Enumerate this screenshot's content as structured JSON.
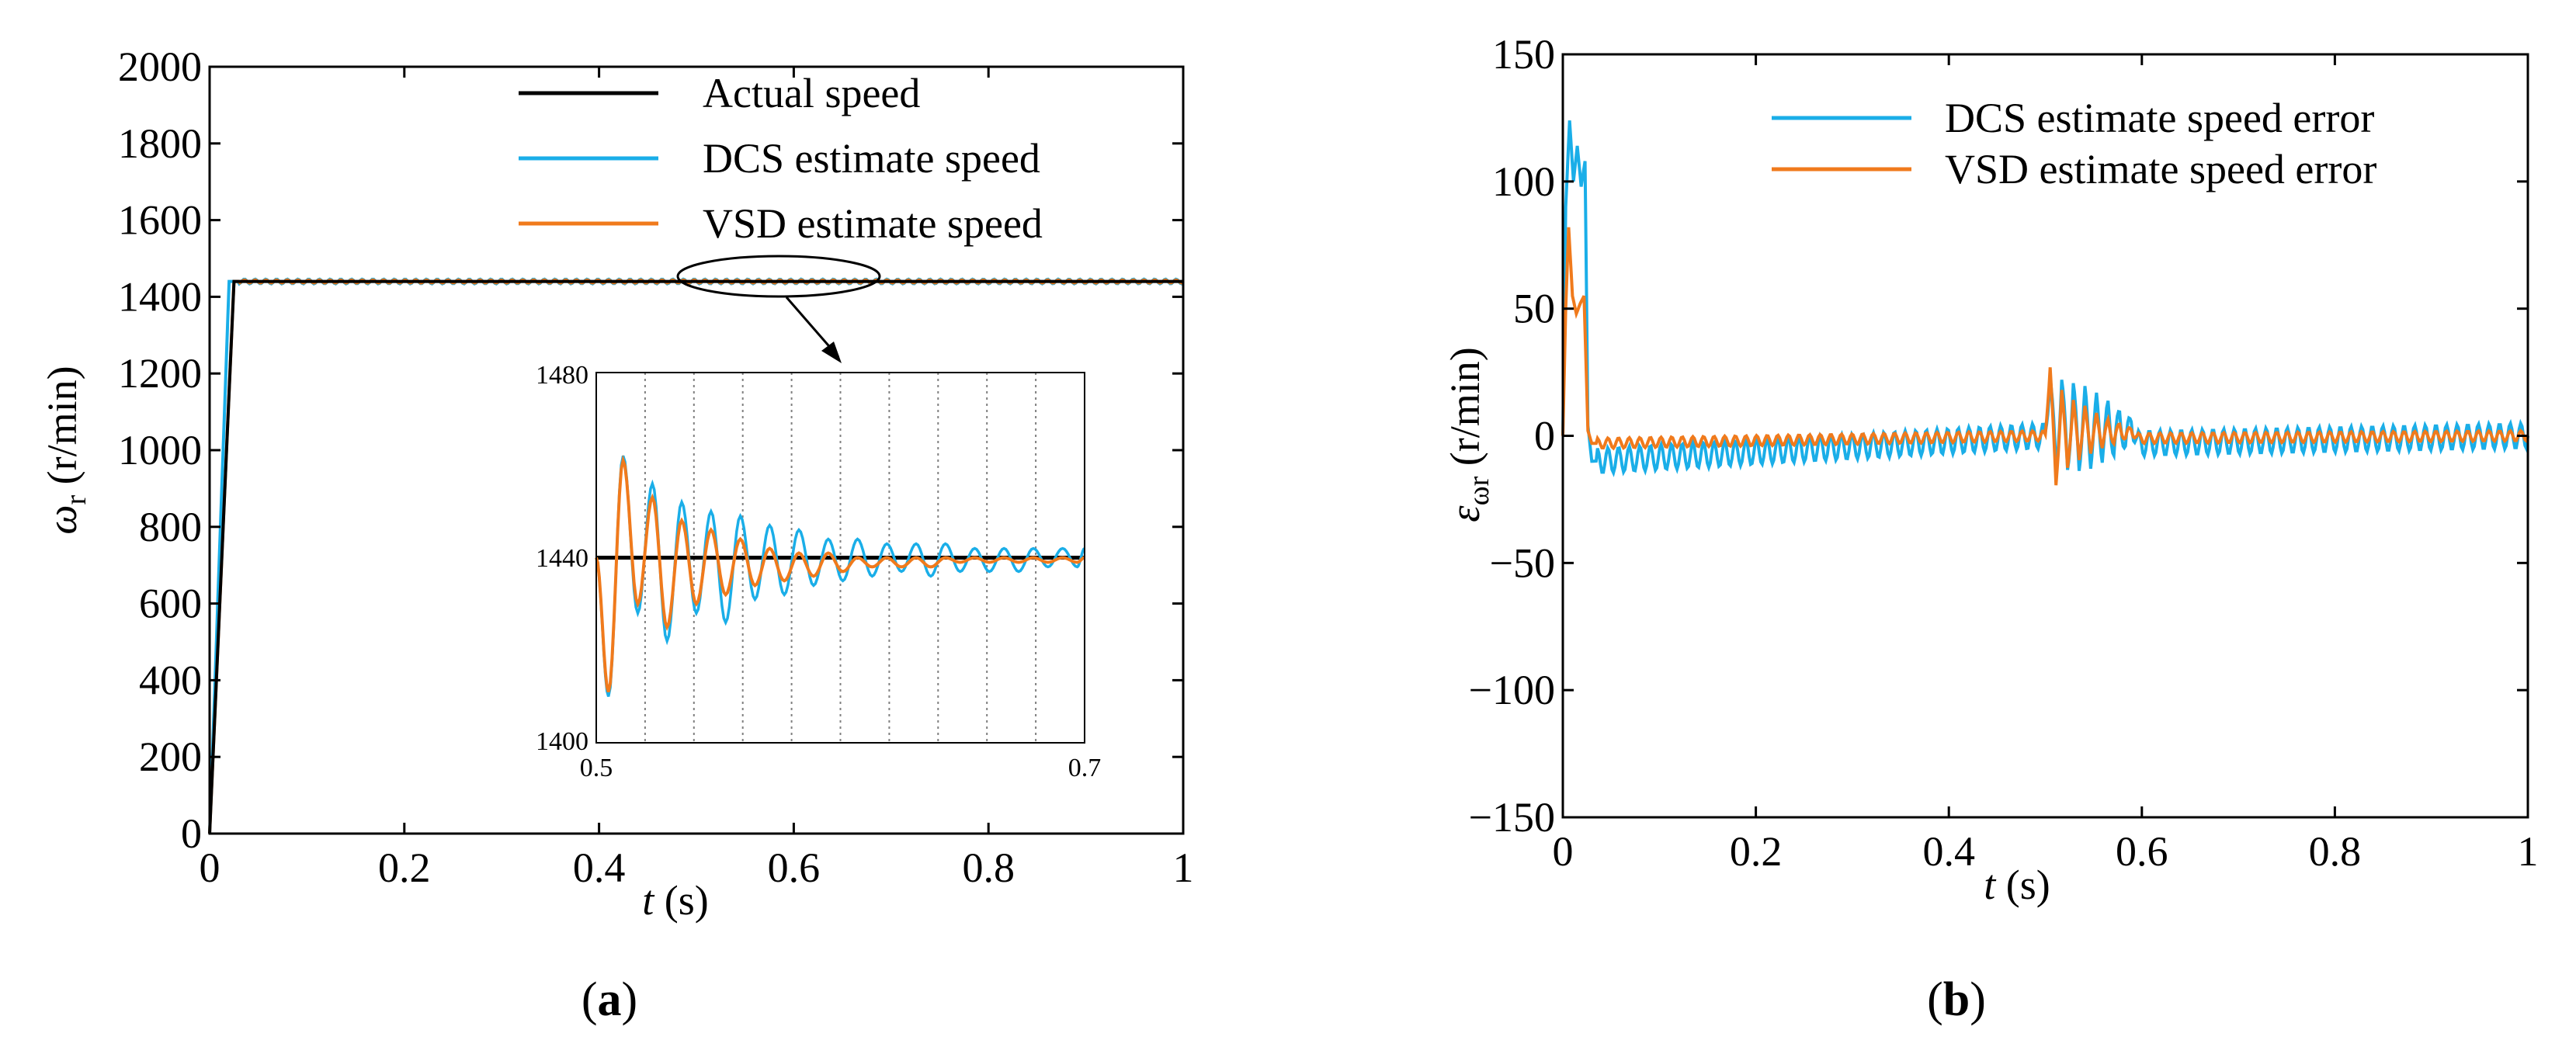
{
  "colors": {
    "actual": "#000000",
    "dcs": "#1aaee8",
    "vsd": "#f07a1c",
    "axis": "#000000",
    "grid": "#808080"
  },
  "chart_data": [
    {
      "id": "a",
      "type": "line",
      "caption": "(a)",
      "caption_letter": "a",
      "xlabel_var": "t",
      "xlabel_unit": " (s)",
      "ylabel_var": "ω",
      "ylabel_sub": "r",
      "ylabel_unit": " (r/min)",
      "xlim": [
        0,
        1
      ],
      "ylim": [
        0,
        2000
      ],
      "xticks": [
        0,
        0.2,
        0.4,
        0.6,
        0.8,
        1
      ],
      "xtick_labels": [
        "0",
        "0.2",
        "0.4",
        "0.6",
        "0.8",
        "1"
      ],
      "yticks": [
        0,
        200,
        400,
        600,
        800,
        1000,
        1200,
        1400,
        1600,
        1800,
        2000
      ],
      "ytick_labels": [
        "0",
        "200",
        "400",
        "600",
        "800",
        "1000",
        "1200",
        "1400",
        "1600",
        "1800",
        "2000"
      ],
      "legend": [
        "Actual speed",
        "DCS estimate speed",
        "VSD estimate speed"
      ],
      "series": [
        {
          "name": "Actual speed",
          "x": [
            0,
            0.025,
            1
          ],
          "values": [
            0,
            1440,
            1440
          ]
        },
        {
          "name": "DCS estimate speed",
          "x": [
            0,
            0.02,
            0.5,
            0.7,
            1
          ],
          "values": [
            0,
            1440,
            1440,
            1440,
            1440
          ]
        },
        {
          "name": "VSD estimate speed",
          "x": [
            0,
            0.025,
            0.5,
            0.7,
            1
          ],
          "values": [
            0,
            1440,
            1440,
            1440,
            1440
          ]
        }
      ],
      "inset": {
        "xlim": [
          0.5,
          0.7
        ],
        "ylim": [
          1400,
          1480
        ],
        "xtick_labels": [
          "0.5",
          "0.7"
        ],
        "ytick_labels": [
          "1400",
          "1440",
          "1480"
        ],
        "actual_value": 1440,
        "dcs": {
          "x": [
            0.5,
            0.505,
            0.511,
            0.517,
            0.523,
            0.529,
            0.535,
            0.541,
            0.547,
            0.553,
            0.559,
            0.565,
            0.571,
            0.577,
            0.583,
            0.589,
            0.595,
            0.601,
            0.607,
            0.613,
            0.619,
            0.625,
            0.631,
            0.637,
            0.643,
            0.649,
            0.655,
            0.661,
            0.667,
            0.673,
            0.679,
            0.685,
            0.691,
            0.697,
            0.7
          ],
          "values": [
            1440,
            1410,
            1462,
            1428,
            1456,
            1422,
            1452,
            1428,
            1450,
            1426,
            1449,
            1431,
            1447,
            1432,
            1446,
            1434,
            1444,
            1435,
            1444,
            1436,
            1443,
            1437,
            1443,
            1436,
            1443,
            1437,
            1442,
            1437,
            1442,
            1437,
            1442,
            1438,
            1442,
            1438,
            1442
          ]
        },
        "vsd": {
          "x": [
            0.5,
            0.505,
            0.511,
            0.517,
            0.523,
            0.529,
            0.535,
            0.541,
            0.547,
            0.553,
            0.559,
            0.565,
            0.571,
            0.577,
            0.583,
            0.589,
            0.595,
            0.601,
            0.607,
            0.613,
            0.619,
            0.625,
            0.631,
            0.637,
            0.643,
            0.649,
            0.655,
            0.661,
            0.667,
            0.673,
            0.679,
            0.685,
            0.691,
            0.697,
            0.7
          ],
          "values": [
            1440,
            1411,
            1461,
            1430,
            1453,
            1425,
            1448,
            1430,
            1446,
            1432,
            1444,
            1434,
            1442,
            1435,
            1441,
            1436,
            1441,
            1437,
            1440,
            1438,
            1440,
            1438,
            1440,
            1438,
            1440,
            1439,
            1440,
            1439,
            1440,
            1439,
            1440,
            1439,
            1440,
            1439,
            1440
          ]
        }
      }
    },
    {
      "id": "b",
      "type": "line",
      "caption": "(b)",
      "caption_letter": "b",
      "xlabel_var": "t",
      "xlabel_unit": " (s)",
      "ylabel_var": "ε",
      "ylabel_sub": "ωr",
      "ylabel_unit": " (r/min)",
      "xlim": [
        0,
        1
      ],
      "ylim": [
        -150,
        150
      ],
      "xticks": [
        0,
        0.2,
        0.4,
        0.6,
        0.8,
        1
      ],
      "xtick_labels": [
        "0",
        "0.2",
        "0.4",
        "0.6",
        "0.8",
        "1"
      ],
      "yticks": [
        -150,
        -100,
        -50,
        0,
        50,
        100,
        150
      ],
      "ytick_labels": [
        "−150",
        "−100",
        "−50",
        "0",
        "50",
        "100",
        "150"
      ],
      "legend": [
        "DCS estimate speed error",
        "VSD estimate speed error"
      ],
      "series": [
        {
          "name": "DCS estimate speed error",
          "x": [
            0,
            0.003,
            0.007,
            0.011,
            0.015,
            0.019,
            0.023,
            0.026,
            0.03,
            0.5,
            0.505,
            0.511,
            0.517,
            0.523,
            0.529,
            0.535,
            0.541,
            0.547,
            0.553,
            0.559,
            0.565,
            0.571,
            0.577,
            0.583,
            0.589,
            0.595,
            1
          ],
          "values": [
            0,
            90,
            124,
            100,
            114,
            98,
            108,
            4,
            -10,
            0,
            26,
            -14,
            22,
            -12,
            18,
            -10,
            15,
            -8,
            12,
            -6,
            10,
            -5,
            8,
            -4,
            7,
            -3,
            0
          ]
        },
        {
          "name": "VSD estimate speed error",
          "x": [
            0,
            0.003,
            0.006,
            0.01,
            0.014,
            0.018,
            0.022,
            0.026,
            0.03,
            0.5,
            0.505,
            0.511,
            0.517,
            0.523,
            0.529,
            0.535,
            0.541,
            0.547,
            0.553,
            0.559,
            0.565,
            0.571,
            0.577,
            0.583,
            0.589,
            0.595,
            1
          ],
          "values": [
            0,
            50,
            82,
            55,
            48,
            52,
            55,
            2,
            -3,
            0,
            28,
            -20,
            18,
            -12,
            13,
            -8,
            10,
            -5,
            7,
            -3,
            5,
            -2,
            4,
            -1,
            3,
            -1,
            0
          ]
        }
      ]
    }
  ]
}
